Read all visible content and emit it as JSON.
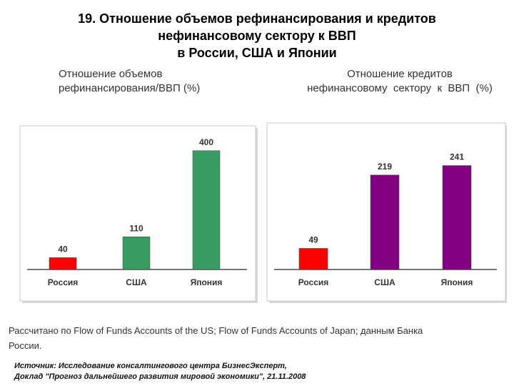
{
  "slide": {
    "title_lines": [
      "19. Отношение объемов рефинансирования и кредитов",
      "нефинансовому сектору к ВВП",
      "в России, США и Японии"
    ]
  },
  "chart_data": [
    {
      "type": "bar",
      "title_lines": [
        "Отношение объемов",
        "рефинансирования/ВВП (%)"
      ],
      "categories": [
        "Россия",
        "США",
        "Япония"
      ],
      "values": [
        40,
        110,
        400
      ],
      "colors": [
        "#ff0000",
        "#3a9a63",
        "#3a9a63"
      ],
      "ylim": [
        0,
        450
      ],
      "grid": false,
      "xlabel": "",
      "ylabel": ""
    },
    {
      "type": "bar",
      "title_lines": [
        "Отношение кредитов",
        "нефинансовому  сектору  к  ВВП  (%)"
      ],
      "categories": [
        "Россия",
        "США",
        "Япония"
      ],
      "values": [
        49,
        219,
        241
      ],
      "colors": [
        "#ff0000",
        "#800080",
        "#800080"
      ],
      "ylim": [
        0,
        290
      ],
      "grid": false,
      "xlabel": "",
      "ylabel": ""
    }
  ],
  "note_lines": [
    "Рассчитано по Flow of Funds Accounts of the US; Flow of Funds Accounts of Japan; данным Банка",
    "России."
  ],
  "source_lines": [
    "Источник: Исследование консалтингового центра БизнесЭксперт,",
    "Доклад \"Прогноз дальнейшего развития мировой экономики\", 21.11.2008"
  ]
}
